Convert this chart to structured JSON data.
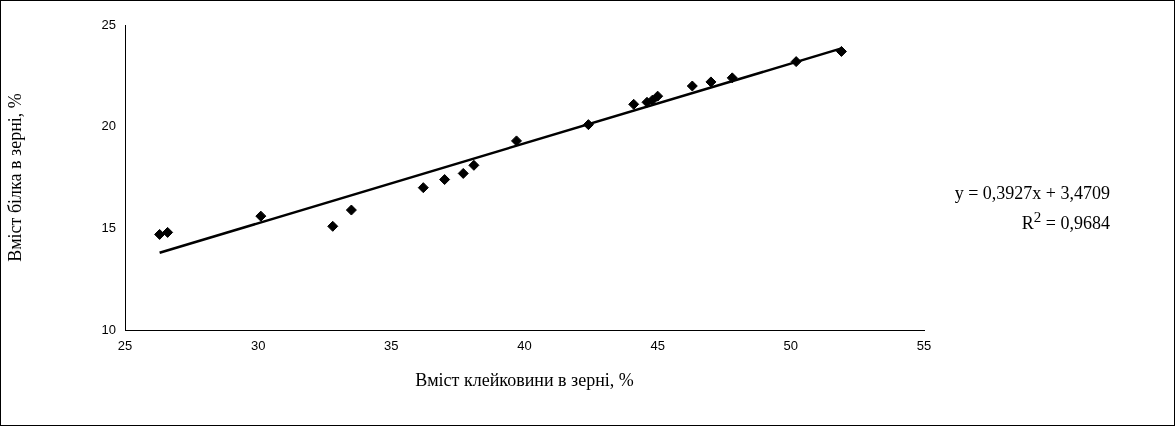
{
  "chart_data": {
    "type": "scatter",
    "xlabel": "Вміст клейковини в зерні, %",
    "ylabel": "Вміст білка в зерні, %",
    "xlim": [
      25,
      55
    ],
    "xticks": [
      25,
      30,
      35,
      40,
      45,
      50,
      55
    ],
    "ylim": [
      10,
      25
    ],
    "yticks": [
      10,
      15,
      20,
      25
    ],
    "legend": false,
    "annotations": [
      "y = 0,3927x + 3,4709",
      "R$^{2}$ = 0,9684"
    ],
    "series": [
      {
        "color": "#000000",
        "marker": "diamond",
        "x": [
          26.3,
          26.6,
          30.1,
          32.8,
          33.5,
          36.2,
          37.0,
          37.7,
          38.1,
          39.7,
          42.4,
          44.1,
          44.6,
          44.8,
          45.0,
          46.3,
          47.0,
          47.8,
          50.2,
          51.9
        ],
        "values": [
          14.7,
          14.8,
          15.6,
          15.1,
          15.9,
          17.0,
          17.4,
          17.7,
          18.1,
          19.3,
          20.1,
          21.1,
          21.2,
          21.3,
          21.5,
          22.0,
          22.2,
          22.4,
          23.2,
          23.7
        ]
      },
      {
        "type": "line",
        "marker": "none",
        "color": "#000000",
        "x": [
          26.3,
          51.9
        ],
        "values": [
          13.8,
          23.85
        ]
      }
    ]
  }
}
